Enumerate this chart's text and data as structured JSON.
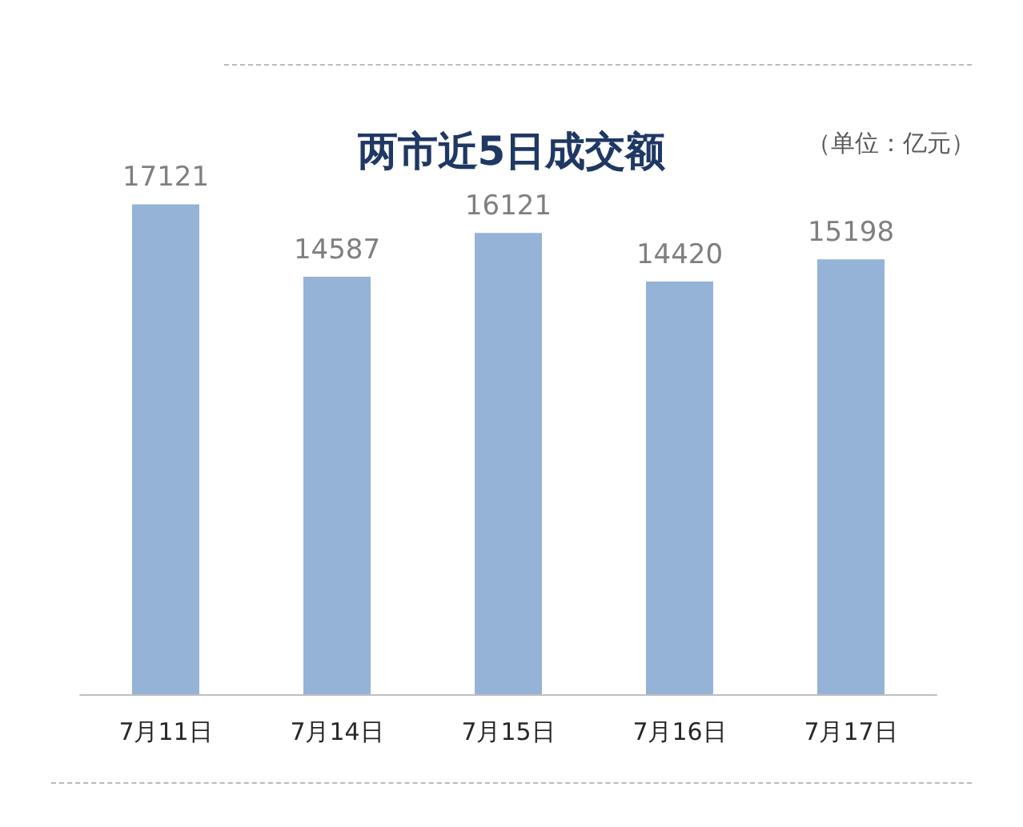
{
  "chart_data": {
    "type": "bar",
    "title": "两市近5日成交额",
    "annotations": [
      "（单位：亿元）"
    ],
    "categories": [
      "7月11日",
      "7月14日",
      "7月15日",
      "7月16日",
      "7月17日"
    ],
    "values": [
      17121,
      14587,
      16121,
      14420,
      15198
    ],
    "color": "#95b3d7",
    "data_labels": true
  }
}
